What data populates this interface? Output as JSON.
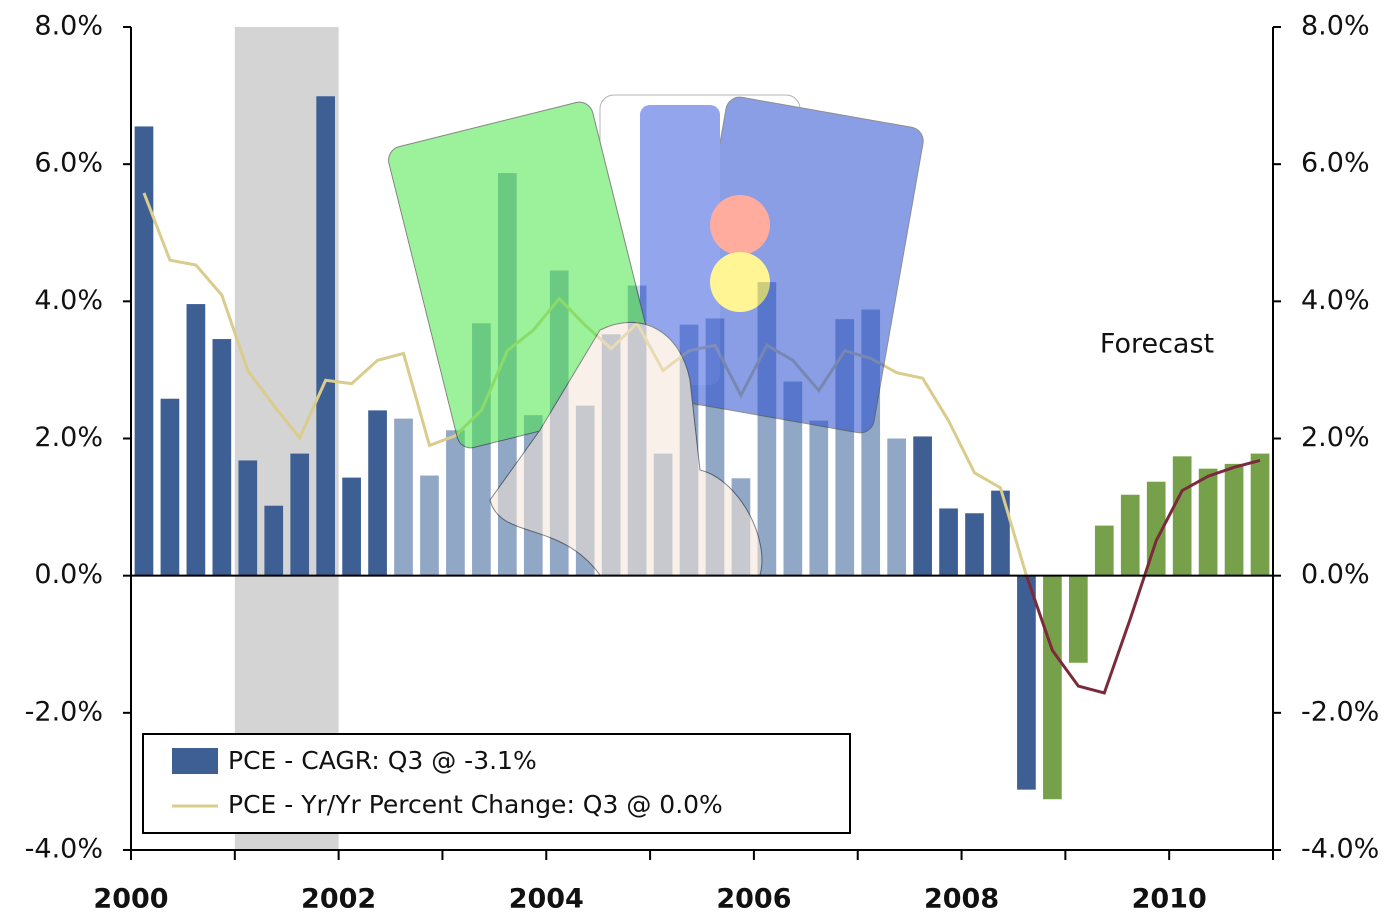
{
  "chart_data": {
    "type": "bar_line",
    "annotation": "Forecast",
    "xlim": [
      2000,
      2011
    ],
    "xticks": [
      2000,
      2002,
      2004,
      2006,
      2008,
      2010
    ],
    "x_minor_ticks": [
      2001,
      2003,
      2005,
      2007,
      2009,
      2011
    ],
    "shaded_range": [
      2001,
      2002
    ],
    "ylim": [
      -4,
      8
    ],
    "yticks": [
      {
        "value": -4,
        "label": "-4.0%"
      },
      {
        "value": -2,
        "label": "-2.0%"
      },
      {
        "value": 0,
        "label": "0.0%"
      },
      {
        "value": 2,
        "label": "2.0%"
      },
      {
        "value": 4,
        "label": "4.0%"
      },
      {
        "value": 6,
        "label": "6.0%"
      },
      {
        "value": 8,
        "label": "8.0%"
      }
    ],
    "y2lim": [
      -4,
      8
    ],
    "y2ticks": [
      {
        "value": -4,
        "label": "-4.0%"
      },
      {
        "value": -2,
        "label": "-2.0%"
      },
      {
        "value": 0,
        "label": "0.0%"
      },
      {
        "value": 2,
        "label": "2.0%"
      },
      {
        "value": 4,
        "label": "4.0%"
      },
      {
        "value": 6,
        "label": "6.0%"
      },
      {
        "value": 8,
        "label": "8.0%"
      }
    ],
    "legend": "lower left",
    "x": [
      2000,
      2000.25,
      2000.5,
      2000.75,
      2001,
      2001.25,
      2001.5,
      2001.75,
      2002,
      2002.25,
      2002.5,
      2002.75,
      2003,
      2003.25,
      2003.5,
      2003.75,
      2004,
      2004.25,
      2004.5,
      2004.75,
      2005,
      2005.25,
      2005.5,
      2005.75,
      2006,
      2006.25,
      2006.5,
      2006.75,
      2007,
      2007.25,
      2007.5,
      2007.75,
      2008,
      2008.25,
      2008.5,
      2008.75,
      2009,
      2009.25,
      2009.5,
      2009.75,
      2010,
      2010.25,
      2010.5,
      2010.75
    ],
    "series": [
      {
        "name": "PCE - CAGR: Q3 @ -3.1%",
        "type": "bar",
        "color": "#3d5f94",
        "colors": [
          "#3d5f94",
          "#3d5f94",
          "#3d5f94",
          "#3d5f94",
          "#3d5f94",
          "#3d5f94",
          "#3d5f94",
          "#3d5f94",
          "#3d5f94",
          "#3d5f94",
          "#91a7c6",
          "#91a7c6",
          "#91a7c6",
          "#91a7c6",
          "#91a7c6",
          "#91a7c6",
          "#91a7c6",
          "#91a7c6",
          "#91a7c6",
          "#91a7c6",
          "#91a7c6",
          "#91a7c6",
          "#91a7c6",
          "#91a7c6",
          "#91a7c6",
          "#91a7c6",
          "#91a7c6",
          "#91a7c6",
          "#91a7c6",
          "#91a7c6",
          "#3d5f94",
          "#3d5f94",
          "#3d5f94",
          "#3d5f94",
          "#3d5f94",
          "#77a04a",
          "#77a04a",
          "#77a04a",
          "#77a04a",
          "#77a04a",
          "#77a04a",
          "#77a04a",
          "#77a04a",
          "#77a04a"
        ],
        "values": [
          6.55,
          2.58,
          3.96,
          3.45,
          1.68,
          1.02,
          1.78,
          6.99,
          1.43,
          2.41,
          2.29,
          1.46,
          2.12,
          3.68,
          5.87,
          2.34,
          4.45,
          2.48,
          3.52,
          4.23,
          1.78,
          3.66,
          3.75,
          1.42,
          4.28,
          2.83,
          2.26,
          3.74,
          3.88,
          2.0,
          2.03,
          0.98,
          0.91,
          1.24,
          -3.12,
          -3.26,
          -1.27,
          0.73,
          1.18,
          1.37,
          1.74,
          1.56,
          1.63,
          1.78
        ]
      },
      {
        "name": "PCE - Yr/Yr Percent Change: Q3 @ 0.0%",
        "type": "line",
        "color": "#d9cc8c",
        "colors": [
          "#d9cc8c",
          "#d9cc8c",
          "#d9cc8c",
          "#d9cc8c",
          "#d9cc8c",
          "#d9cc8c",
          "#d9cc8c",
          "#d9cc8c",
          "#d9cc8c",
          "#d9cc8c",
          "#d9cc8c",
          "#d9cc8c",
          "#d9cc8c",
          "#d9cc8c",
          "#d9cc8c",
          "#d9cc8c",
          "#d9cc8c",
          "#d9cc8c",
          "#d9cc8c",
          "#d9cc8c",
          "#d9cc8c",
          "#d9cc8c",
          "#d9cc8c",
          "#d9cc8c",
          "#d9cc8c",
          "#d9cc8c",
          "#d9cc8c",
          "#d9cc8c",
          "#d9cc8c",
          "#d9cc8c",
          "#d9cc8c",
          "#d9cc8c",
          "#d9cc8c",
          "#d9cc8c",
          "#d9cc8c",
          "#7a2a3a",
          "#7a2a3a",
          "#7a2a3a",
          "#7a2a3a",
          "#7a2a3a",
          "#7a2a3a",
          "#7a2a3a",
          "#7a2a3a",
          "#7a2a3a"
        ],
        "values": [
          5.58,
          4.6,
          4.53,
          4.09,
          2.99,
          2.48,
          2.01,
          2.85,
          2.8,
          3.14,
          3.24,
          1.9,
          2.04,
          2.41,
          3.28,
          3.58,
          4.04,
          3.65,
          3.31,
          3.68,
          2.99,
          3.28,
          3.36,
          2.63,
          3.36,
          3.14,
          2.7,
          3.28,
          3.17,
          2.96,
          2.88,
          2.26,
          1.5,
          1.28,
          0.0,
          -1.09,
          -1.61,
          -1.71,
          -0.63,
          0.51,
          1.24,
          1.45,
          1.58,
          1.68
        ]
      }
    ]
  }
}
